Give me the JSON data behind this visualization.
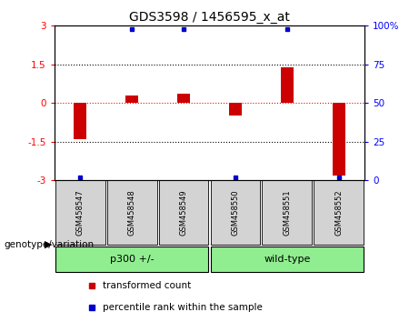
{
  "title": "GDS3598 / 1456595_x_at",
  "samples": [
    "GSM458547",
    "GSM458548",
    "GSM458549",
    "GSM458550",
    "GSM458551",
    "GSM458552"
  ],
  "transformed_counts": [
    -1.4,
    0.3,
    0.35,
    -0.5,
    1.4,
    -2.8
  ],
  "percentile_ranks": [
    2,
    98,
    98,
    2,
    98,
    2
  ],
  "ylim_left": [
    -3,
    3
  ],
  "ylim_right": [
    0,
    100
  ],
  "yticks_left": [
    -3,
    -1.5,
    0,
    1.5,
    3
  ],
  "yticks_right": [
    0,
    25,
    50,
    75,
    100
  ],
  "ytick_labels_left": [
    "-3",
    "-1.5",
    "0",
    "1.5",
    "3"
  ],
  "ytick_labels_right": [
    "0",
    "25",
    "50",
    "75",
    "100%"
  ],
  "hlines": [
    1.5,
    -1.5
  ],
  "zero_line": 0,
  "bar_color": "#cc0000",
  "marker_color": "#0000cc",
  "bar_width": 0.25,
  "group1_label": "p300 +/-",
  "group2_label": "wild-type",
  "group1_indices": [
    0,
    1,
    2
  ],
  "group2_indices": [
    3,
    4,
    5
  ],
  "group_bg_color": "#90ee90",
  "sample_bg_color": "#d3d3d3",
  "legend_red_label": "transformed count",
  "legend_blue_label": "percentile rank within the sample",
  "genotype_label": "genotype/variation",
  "title_fontsize": 10,
  "tick_fontsize": 7.5,
  "label_fontsize": 7.5
}
